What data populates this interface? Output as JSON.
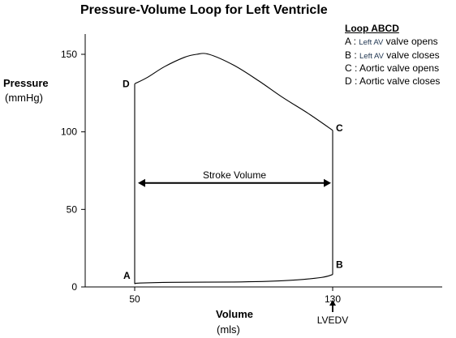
{
  "title": "Pressure-Volume Loop for Left Ventricle",
  "y_axis": {
    "label": "Pressure",
    "unit": "(mmHg)"
  },
  "x_axis": {
    "label": "Volume",
    "unit": "(mls)"
  },
  "lvedv_label": "LVEDV",
  "legend": {
    "title": "Loop  ABCD",
    "items": [
      {
        "letter": "A :",
        "small": "Left AV",
        "text": "valve opens"
      },
      {
        "letter": "B :",
        "small": "Left AV",
        "text": "valve closes"
      },
      {
        "letter": "C :",
        "small": "",
        "text": "Aortic valve opens"
      },
      {
        "letter": "D :",
        "small": "",
        "text": "Aortic valve closes"
      }
    ]
  },
  "chart_data": {
    "type": "line",
    "title": "Pressure-Volume Loop for Left Ventricle",
    "xlabel": "Volume (mls)",
    "ylabel": "Pressure (mmHg)",
    "xlim": [
      30,
      158
    ],
    "ylim": [
      0,
      160
    ],
    "x_ticks": [
      50,
      130
    ],
    "y_ticks": [
      0,
      50,
      100,
      150
    ],
    "grid": false,
    "loop_points": [
      {
        "label": "A",
        "x": 50,
        "y": 2
      },
      {
        "label": "B",
        "x": 130,
        "y": 8
      },
      {
        "label": "C",
        "x": 130,
        "y": 101
      },
      {
        "label": "D",
        "x": 50,
        "y": 131
      }
    ],
    "segments": {
      "filling_A_to_B": [
        [
          50,
          2
        ],
        [
          52,
          2.5
        ],
        [
          65,
          3
        ],
        [
          90,
          3.2
        ],
        [
          110,
          4
        ],
        [
          125,
          6
        ],
        [
          130,
          8
        ]
      ],
      "isovolumetric_contraction_B_to_C": [
        [
          130,
          8
        ],
        [
          130,
          101
        ]
      ],
      "ejection_C_to_D": [
        [
          130,
          101
        ],
        [
          120,
          112
        ],
        [
          110,
          122
        ],
        [
          100,
          133
        ],
        [
          90,
          143
        ],
        [
          80,
          150
        ],
        [
          75,
          150
        ],
        [
          70,
          148
        ],
        [
          62,
          142
        ],
        [
          55,
          135
        ],
        [
          50,
          131
        ]
      ],
      "isovolumetric_relaxation_D_to_A": [
        [
          50,
          131
        ],
        [
          50,
          2
        ]
      ]
    },
    "annotations": [
      {
        "text": "Stroke Volume",
        "x_from": 50,
        "x_to": 130,
        "y": 67
      }
    ]
  }
}
